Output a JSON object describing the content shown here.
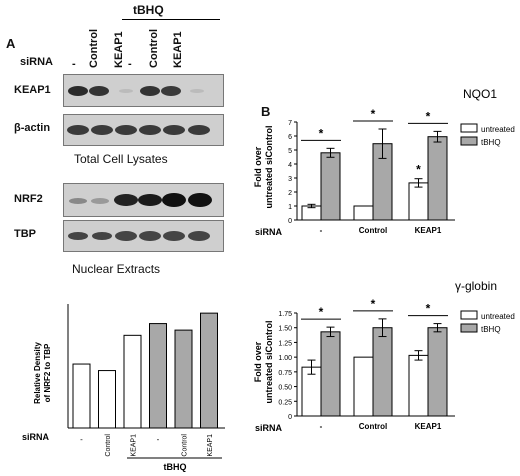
{
  "panels": {
    "a": "A",
    "b": "B"
  },
  "blot_header": {
    "siRNA_label": "siRNA",
    "lanes": [
      "-",
      "Control",
      "KEAP1",
      "-",
      "Control",
      "KEAP1"
    ],
    "treatment": "tBHQ"
  },
  "blots": {
    "keap1": "KEAP1",
    "actin": "β-actin",
    "total_caption": "Total Cell Lysates",
    "nrf2": "NRF2",
    "tbp": "TBP",
    "nuclear_caption": "Nuclear Extracts"
  },
  "colors": {
    "untreated": "#ffffff",
    "tbhq": "#a8a8a8",
    "axis": "#000000"
  },
  "chart_data": [
    {
      "type": "bar",
      "ylabel": "Relative Density of NRF2 to TBP",
      "categories": [
        "-",
        "Control",
        "KEAP1",
        "-",
        "Control",
        "KEAP1"
      ],
      "values": [
        0.98,
        0.88,
        1.42,
        1.6,
        1.5,
        1.76
      ],
      "fill": [
        "untreated",
        "untreated",
        "untreated",
        "tbhq",
        "tbhq",
        "tbhq"
      ],
      "ylim": [
        0,
        1.9
      ],
      "xlabel": "siRNA",
      "group_label": "tBHQ"
    },
    {
      "type": "bar",
      "title": "NQO1",
      "ylabel": "Fold over untreated siControl",
      "xlabel": "siRNA",
      "categories": [
        "-",
        "Control",
        "KEAP1"
      ],
      "yticks": [
        "0",
        "1",
        "2",
        "3",
        "4",
        "5",
        "6",
        "7"
      ],
      "ylim": [
        0,
        7
      ],
      "series": [
        {
          "name": "untreated",
          "values": [
            1.0,
            1.0,
            2.65
          ],
          "errors": [
            0.12,
            0,
            0.3
          ]
        },
        {
          "name": "tBHQ",
          "values": [
            4.8,
            5.45,
            5.95
          ],
          "errors": [
            0.32,
            1.05,
            0.38
          ]
        }
      ],
      "significance": [
        "*",
        "*",
        "*"
      ],
      "extra_mark": "*",
      "legend_placement": "top-right"
    },
    {
      "type": "bar",
      "title": "γ-globin",
      "ylabel": "Fold over untreated siControl",
      "xlabel": "siRNA",
      "categories": [
        "-",
        "Control",
        "KEAP1"
      ],
      "yticks": [
        "0",
        "0.25",
        "0.50",
        "0.75",
        "1.00",
        "1.25",
        "1.50",
        "1.75"
      ],
      "ylim": [
        0,
        1.75
      ],
      "series": [
        {
          "name": "untreated",
          "values": [
            0.83,
            1.0,
            1.03
          ],
          "errors": [
            0.12,
            0,
            0.08
          ]
        },
        {
          "name": "tBHQ",
          "values": [
            1.43,
            1.5,
            1.5
          ],
          "errors": [
            0.08,
            0.15,
            0.07
          ]
        }
      ],
      "significance": [
        "*",
        "*",
        "*"
      ],
      "legend_placement": "top-right"
    }
  ]
}
